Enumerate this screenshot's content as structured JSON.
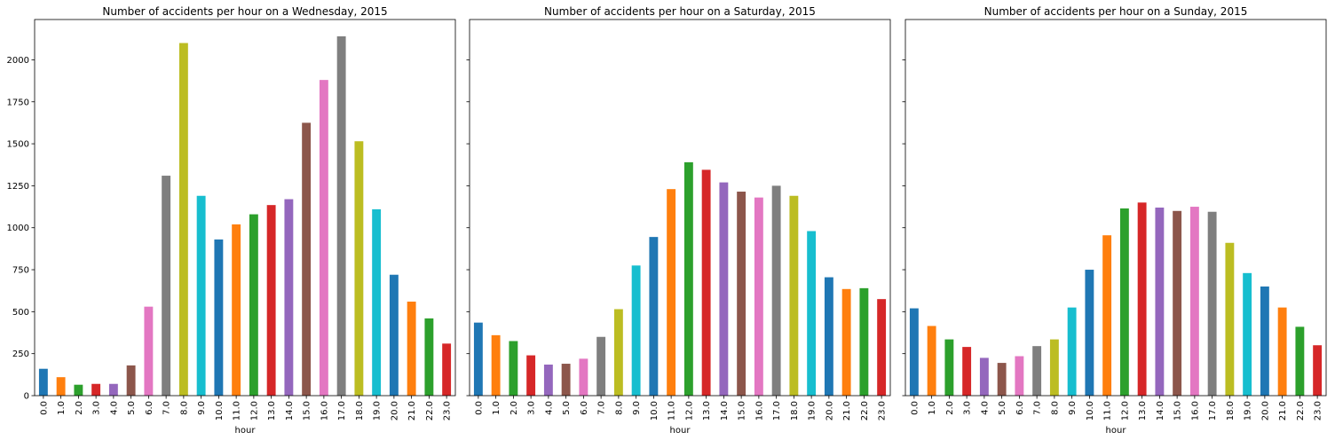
{
  "colors": [
    "#1f77b4",
    "#ff7f0e",
    "#2ca02c",
    "#d62728",
    "#9467bd",
    "#8c564b",
    "#e377c2",
    "#7f7f7f",
    "#bcbd22",
    "#17becf"
  ],
  "chart_data": [
    {
      "type": "bar",
      "title": "Number of accidents per hour on a Wednesday, 2015",
      "xlabel": "hour",
      "ylabel": "",
      "ylim": [
        0,
        2240
      ],
      "yticks": [
        0,
        250,
        500,
        750,
        1000,
        1250,
        1500,
        1750,
        2000
      ],
      "show_ytick_labels": true,
      "categories": [
        "0.0",
        "1.0",
        "2.0",
        "3.0",
        "4.0",
        "5.0",
        "6.0",
        "7.0",
        "8.0",
        "9.0",
        "10.0",
        "11.0",
        "12.0",
        "13.0",
        "14.0",
        "15.0",
        "16.0",
        "17.0",
        "18.0",
        "19.0",
        "20.0",
        "21.0",
        "22.0",
        "23.0"
      ],
      "values": [
        160,
        110,
        65,
        70,
        70,
        180,
        530,
        1310,
        2100,
        1190,
        930,
        1020,
        1080,
        1135,
        1170,
        1625,
        1880,
        2140,
        1515,
        1110,
        720,
        560,
        460,
        310
      ]
    },
    {
      "type": "bar",
      "title": "Number of accidents per hour on a Saturday, 2015",
      "xlabel": "hour",
      "ylabel": "",
      "ylim": [
        0,
        2240
      ],
      "yticks": [
        0,
        250,
        500,
        750,
        1000,
        1250,
        1500,
        1750,
        2000
      ],
      "show_ytick_labels": false,
      "categories": [
        "0.0",
        "1.0",
        "2.0",
        "3.0",
        "4.0",
        "5.0",
        "6.0",
        "7.0",
        "8.0",
        "9.0",
        "10.0",
        "11.0",
        "12.0",
        "13.0",
        "14.0",
        "15.0",
        "16.0",
        "17.0",
        "18.0",
        "19.0",
        "20.0",
        "21.0",
        "22.0",
        "23.0"
      ],
      "values": [
        435,
        360,
        325,
        240,
        185,
        190,
        220,
        350,
        515,
        775,
        945,
        1230,
        1390,
        1345,
        1270,
        1215,
        1180,
        1250,
        1190,
        980,
        705,
        635,
        640,
        575
      ]
    },
    {
      "type": "bar",
      "title": "Number of accidents per hour on a Sunday, 2015",
      "xlabel": "hour",
      "ylabel": "",
      "ylim": [
        0,
        2240
      ],
      "yticks": [
        0,
        250,
        500,
        750,
        1000,
        1250,
        1500,
        1750,
        2000
      ],
      "show_ytick_labels": false,
      "categories": [
        "0.0",
        "1.0",
        "2.0",
        "3.0",
        "4.0",
        "5.0",
        "6.0",
        "7.0",
        "8.0",
        "9.0",
        "10.0",
        "11.0",
        "12.0",
        "13.0",
        "14.0",
        "15.0",
        "16.0",
        "17.0",
        "18.0",
        "19.0",
        "20.0",
        "21.0",
        "22.0",
        "23.0"
      ],
      "values": [
        520,
        415,
        335,
        290,
        225,
        195,
        235,
        295,
        335,
        525,
        750,
        955,
        1115,
        1150,
        1120,
        1100,
        1125,
        1095,
        910,
        730,
        650,
        525,
        410,
        300
      ]
    }
  ]
}
